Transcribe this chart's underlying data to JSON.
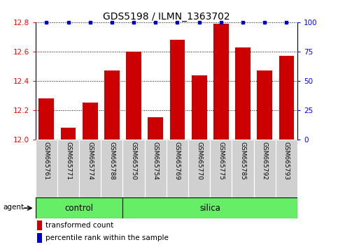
{
  "title": "GDS5198 / ILMN_1363702",
  "samples": [
    "GSM665761",
    "GSM665771",
    "GSM665774",
    "GSM665788",
    "GSM665750",
    "GSM665754",
    "GSM665769",
    "GSM665770",
    "GSM665775",
    "GSM665785",
    "GSM665792",
    "GSM665793"
  ],
  "bar_values": [
    12.28,
    12.08,
    12.25,
    12.47,
    12.6,
    12.15,
    12.68,
    12.44,
    12.79,
    12.63,
    12.47,
    12.57
  ],
  "bar_color": "#cc0000",
  "percentile_color": "#0000cc",
  "ylim_left": [
    12.0,
    12.8
  ],
  "ylim_right": [
    0,
    100
  ],
  "yticks_left": [
    12.0,
    12.2,
    12.4,
    12.6,
    12.8
  ],
  "yticks_right": [
    0,
    25,
    50,
    75,
    100
  ],
  "control_count": 4,
  "silica_count": 8,
  "control_label": "control",
  "silica_label": "silica",
  "agent_label": "agent",
  "legend_bar_label": "transformed count",
  "legend_pct_label": "percentile rank within the sample",
  "group_bg_color": "#66ee66",
  "tick_label_bg": "#d0d0d0",
  "title_fontsize": 10,
  "bar_width": 0.7
}
